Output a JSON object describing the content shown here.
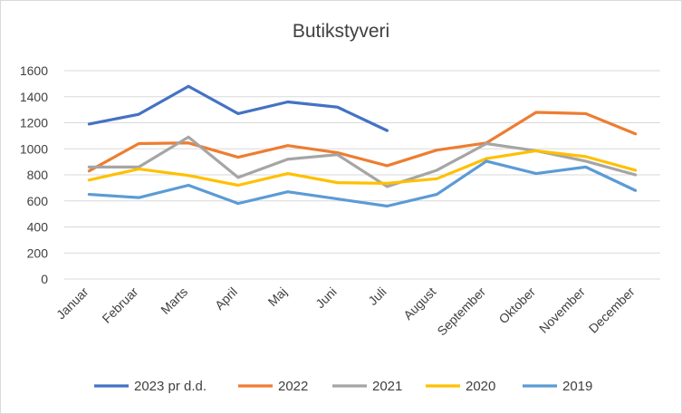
{
  "chart_data": {
    "type": "line",
    "title": "Butikstyveri",
    "xlabel": "",
    "ylabel": "",
    "categories": [
      "Januar",
      "Februar",
      "Marts",
      "April",
      "Maj",
      "Juni",
      "Juli",
      "August",
      "September",
      "Oktober",
      "November",
      "December"
    ],
    "ylim": [
      0,
      1600
    ],
    "yticks": [
      0,
      200,
      400,
      600,
      800,
      1000,
      1200,
      1400,
      1600
    ],
    "grid": true,
    "legend_position": "bottom",
    "series": [
      {
        "name": "2023 pr d.d.",
        "color": "#4472c4",
        "values": [
          1190,
          1265,
          1480,
          1270,
          1360,
          1320,
          1140,
          null,
          null,
          null,
          null,
          null
        ]
      },
      {
        "name": "2022",
        "color": "#ed7d31",
        "values": [
          830,
          1040,
          1045,
          935,
          1025,
          970,
          870,
          990,
          1045,
          1280,
          1270,
          1115
        ]
      },
      {
        "name": "2021",
        "color": "#a5a5a5",
        "values": [
          860,
          860,
          1090,
          780,
          920,
          955,
          710,
          835,
          1040,
          985,
          905,
          800
        ]
      },
      {
        "name": "2020",
        "color": "#ffc000",
        "values": [
          760,
          845,
          795,
          720,
          810,
          740,
          735,
          770,
          925,
          985,
          940,
          835
        ]
      },
      {
        "name": "2019",
        "color": "#5b9bd5",
        "values": [
          650,
          625,
          720,
          580,
          670,
          615,
          560,
          650,
          905,
          810,
          860,
          680
        ]
      }
    ]
  }
}
